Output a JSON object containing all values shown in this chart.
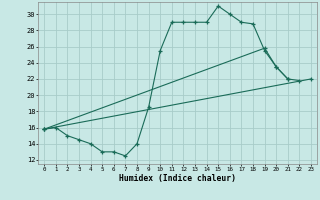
{
  "xlabel": "Humidex (Indice chaleur)",
  "background_color": "#c8e8e5",
  "grid_color": "#a8ccc9",
  "line_color": "#1a6b58",
  "xlim": [
    -0.5,
    23.5
  ],
  "ylim": [
    11.5,
    31.5
  ],
  "yticks": [
    12,
    14,
    16,
    18,
    20,
    22,
    24,
    26,
    28,
    30
  ],
  "xticks": [
    0,
    1,
    2,
    3,
    4,
    5,
    6,
    7,
    8,
    9,
    10,
    11,
    12,
    13,
    14,
    15,
    16,
    17,
    18,
    19,
    20,
    21,
    22,
    23
  ],
  "line1_x": [
    0,
    1,
    2,
    3,
    4,
    5,
    6,
    7,
    8,
    9,
    10,
    11,
    12,
    13,
    14,
    15,
    16,
    17,
    18,
    19,
    20,
    21
  ],
  "line1_y": [
    15.8,
    16.0,
    15.0,
    14.5,
    14.0,
    13.0,
    13.0,
    12.5,
    14.0,
    18.5,
    25.5,
    29.0,
    29.0,
    29.0,
    29.0,
    31.0,
    30.0,
    29.0,
    28.8,
    25.5,
    23.5,
    22.0
  ],
  "line2_x": [
    0,
    19,
    20,
    21,
    22
  ],
  "line2_y": [
    15.8,
    25.8,
    23.5,
    22.0,
    21.8
  ],
  "line3_x": [
    0,
    23
  ],
  "line3_y": [
    15.8,
    22.0
  ]
}
